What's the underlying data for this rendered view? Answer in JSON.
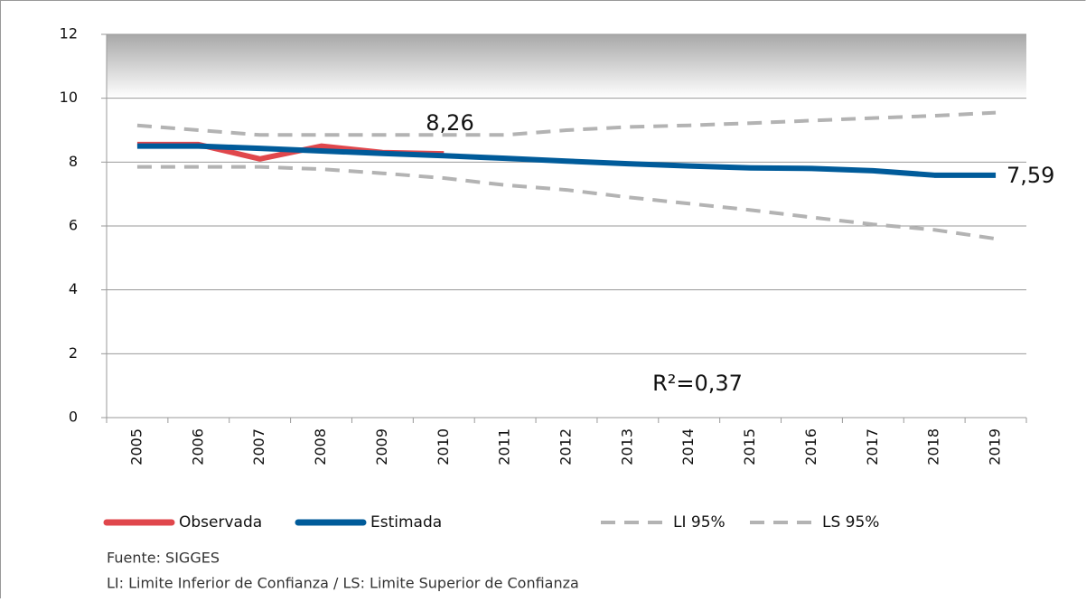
{
  "chart_data": {
    "type": "line",
    "categories": [
      "2005",
      "2006",
      "2007",
      "2008",
      "2009",
      "2010",
      "2011",
      "2012",
      "2013",
      "2014",
      "2015",
      "2016",
      "2017",
      "2018",
      "2019"
    ],
    "series": [
      {
        "name": "Observada",
        "color": "#e0474c",
        "dash": false,
        "values": [
          8.55,
          8.55,
          8.1,
          8.5,
          8.3,
          8.26,
          null,
          null,
          null,
          null,
          null,
          null,
          null,
          null,
          null
        ]
      },
      {
        "name": "Estimada",
        "color": "#005b9a",
        "dash": false,
        "values": [
          8.5,
          8.5,
          8.43,
          8.35,
          8.27,
          8.2,
          8.12,
          8.03,
          7.95,
          7.88,
          7.82,
          7.8,
          7.73,
          7.59,
          7.59
        ]
      },
      {
        "name": "LI 95%",
        "color": "#b3b3b3",
        "dash": true,
        "values": [
          7.85,
          7.85,
          7.85,
          7.78,
          7.65,
          7.5,
          7.28,
          7.13,
          6.9,
          6.7,
          6.5,
          6.27,
          6.05,
          5.88,
          5.6
        ]
      },
      {
        "name": "LS 95%",
        "color": "#b3b3b3",
        "dash": true,
        "values": [
          9.15,
          9.0,
          8.85,
          8.85,
          8.85,
          8.85,
          8.85,
          9.0,
          9.1,
          9.15,
          9.22,
          9.3,
          9.38,
          9.45,
          9.55
        ]
      }
    ],
    "ylim": [
      0,
      12
    ],
    "yticks": [
      0,
      2,
      4,
      6,
      8,
      10,
      12
    ],
    "grid": true,
    "annotations": [
      "8,26",
      "7,59",
      "R²=0,37"
    ],
    "footnotes": [
      "Fuente: SIGGES",
      "LI: Limite Inferior de Confianza / LS: Limite Superior de Confianza"
    ]
  }
}
